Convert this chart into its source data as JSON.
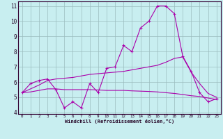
{
  "xlabel": "Windchill (Refroidissement éolien,°C)",
  "background_color": "#c8eef0",
  "grid_color": "#9bbcbe",
  "line_color": "#aa00aa",
  "x": [
    0,
    1,
    2,
    3,
    4,
    5,
    6,
    7,
    8,
    9,
    10,
    11,
    12,
    13,
    14,
    15,
    16,
    17,
    18,
    19,
    20,
    21,
    22,
    23
  ],
  "line1": [
    5.3,
    5.9,
    6.1,
    6.2,
    5.5,
    4.3,
    4.7,
    4.3,
    5.9,
    5.3,
    6.9,
    7.0,
    8.4,
    8.0,
    9.55,
    10.0,
    11.0,
    11.0,
    10.5,
    7.7,
    6.7,
    5.3,
    4.7,
    4.9
  ],
  "line2": [
    5.3,
    5.55,
    5.8,
    6.1,
    6.2,
    6.25,
    6.3,
    6.4,
    6.5,
    6.55,
    6.6,
    6.65,
    6.7,
    6.8,
    6.9,
    7.0,
    7.1,
    7.3,
    7.55,
    7.65,
    6.65,
    5.9,
    5.25,
    5.0
  ],
  "line3": [
    5.3,
    5.35,
    5.45,
    5.55,
    5.55,
    5.5,
    5.5,
    5.5,
    5.5,
    5.48,
    5.45,
    5.45,
    5.45,
    5.42,
    5.4,
    5.38,
    5.35,
    5.3,
    5.25,
    5.18,
    5.1,
    5.05,
    4.95,
    4.85
  ],
  "ylim": [
    4,
    11
  ],
  "xlim": [
    0,
    23
  ],
  "yticks": [
    4,
    5,
    6,
    7,
    8,
    9,
    10,
    11
  ],
  "xticks": [
    0,
    1,
    2,
    3,
    4,
    5,
    6,
    7,
    8,
    9,
    10,
    11,
    12,
    13,
    14,
    15,
    16,
    17,
    18,
    19,
    20,
    21,
    22,
    23
  ]
}
